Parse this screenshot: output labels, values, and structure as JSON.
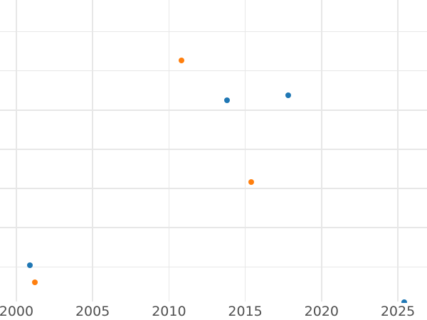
{
  "colors": {
    "background": "#ffffff",
    "gridline": "#e7e7e7",
    "tick_label": "#4f4f4f",
    "series_blue": "#1f77b4",
    "series_orange": "#ff7f0e"
  },
  "chart_data": {
    "type": "scatter",
    "title": "",
    "xlabel": "",
    "ylabel": "",
    "grid": true,
    "legend": false,
    "xlim": [
      1998.93,
      2026.91
    ],
    "ylim": [
      0,
      7.81
    ],
    "x_ticks": [
      2000,
      2005,
      2010,
      2015,
      2020,
      2025
    ],
    "x_tick_labels": [
      "2000",
      "2005",
      "2010",
      "2015",
      "2020",
      "2025"
    ],
    "y_ticks": [
      1,
      2,
      3,
      4,
      5,
      6,
      7
    ],
    "y_tick_labels": [],
    "y_axis_note": "y-axis tick labels not visible in image; y values estimated in gridline units counted from bottom",
    "series": [
      {
        "name": "blue",
        "color": "#1f77b4",
        "points": [
          {
            "x": 2000.9,
            "y": 1.05
          },
          {
            "x": 2013.8,
            "y": 5.25
          },
          {
            "x": 2017.8,
            "y": 5.37
          },
          {
            "x": 2025.4,
            "y": 0.1
          }
        ]
      },
      {
        "name": "orange",
        "color": "#ff7f0e",
        "points": [
          {
            "x": 2001.2,
            "y": 0.6
          },
          {
            "x": 2010.8,
            "y": 6.26
          },
          {
            "x": 2015.4,
            "y": 3.17
          }
        ]
      }
    ]
  }
}
